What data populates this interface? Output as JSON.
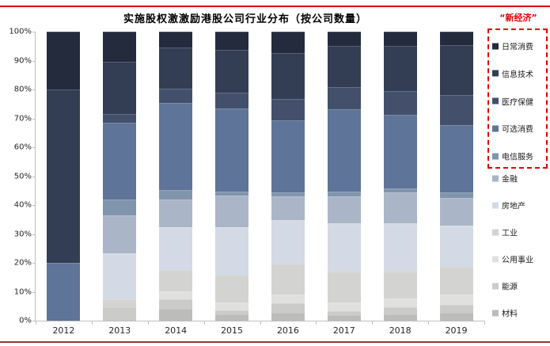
{
  "page": {
    "top_rule_color": "#d40000",
    "bottom_rule_color": "#953735",
    "background": "#ffffff"
  },
  "chart_data": {
    "type": "bar",
    "stacked": true,
    "percent_stacked": true,
    "title": "实施股权激激励港股公司行业分布（按公司数量）",
    "categories": [
      "2012",
      "2013",
      "2014",
      "2015",
      "2016",
      "2017",
      "2018",
      "2019"
    ],
    "series": [
      {
        "name": "日常消费",
        "color": "#232b3d",
        "values": [
          20.0,
          10.3,
          5.5,
          6.3,
          7.4,
          4.9,
          4.9,
          4.7
        ]
      },
      {
        "name": "信息技术",
        "color": "#333e55",
        "values": [
          60.0,
          18.2,
          14.2,
          14.8,
          15.9,
          14.3,
          15.6,
          17.2
        ]
      },
      {
        "name": "医疗保健",
        "color": "#44506b",
        "values": [
          0.0,
          3.1,
          5.0,
          5.5,
          7.4,
          7.6,
          8.3,
          10.4
        ]
      },
      {
        "name": "可选消费",
        "color": "#5e7498",
        "values": [
          20.0,
          26.5,
          30.1,
          28.7,
          24.9,
          28.5,
          25.4,
          23.3
        ]
      },
      {
        "name": "电信服务",
        "color": "#8095ac",
        "values": [
          0.0,
          5.5,
          3.3,
          1.4,
          1.5,
          1.7,
          1.4,
          1.9
        ]
      },
      {
        "name": "金融",
        "color": "#aab5c7",
        "values": [
          0.0,
          13.1,
          9.6,
          11.0,
          8.1,
          9.3,
          10.7,
          9.6
        ]
      },
      {
        "name": "房地产",
        "color": "#d3dae5",
        "values": [
          0.0,
          15.9,
          14.8,
          16.4,
          15.1,
          16.7,
          16.7,
          14.3
        ]
      },
      {
        "name": "工业",
        "color": "#d3d3d1",
        "values": [
          0.0,
          2.7,
          7.4,
          9.6,
          10.6,
          10.7,
          9.3,
          9.6
        ]
      },
      {
        "name": "公用事业",
        "color": "#e0e0de",
        "values": [
          0.0,
          0.0,
          2.7,
          2.7,
          3.1,
          3.0,
          3.0,
          3.5
        ]
      },
      {
        "name": "能源",
        "color": "#cbcbc9",
        "values": [
          0.0,
          4.7,
          3.3,
          1.4,
          3.2,
          1.4,
          2.4,
          2.8
        ]
      },
      {
        "name": "材料",
        "color": "#bcbcba",
        "values": [
          0.0,
          0.0,
          4.1,
          2.2,
          2.8,
          1.9,
          2.3,
          2.7
        ]
      }
    ],
    "y_ticks": [
      "0%",
      "10%",
      "20%",
      "30%",
      "40%",
      "50%",
      "60%",
      "70%",
      "80%",
      "90%",
      "100%"
    ],
    "ylim": [
      0,
      100
    ],
    "grid": false,
    "legend_position": "right",
    "legend_annotation": "“新经济”",
    "legend_annotation_color": "#e00000",
    "new_economy_group_size": 5,
    "new_economy_members": [
      "日常消费",
      "信息技术",
      "医疗保健",
      "可选消费",
      "电信服务"
    ]
  }
}
